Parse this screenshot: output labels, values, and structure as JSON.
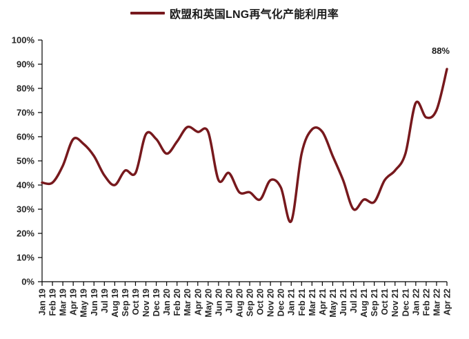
{
  "legend": {
    "label": "欧盟和英国LNG再气化产能利用率"
  },
  "chart_data": {
    "type": "line",
    "title": "欧盟和英国LNG再气化产能利用率",
    "categories": [
      "Jan 19",
      "Feb 19",
      "Mar 19",
      "Apr 19",
      "May 19",
      "Jun 19",
      "Jul 19",
      "Aug 19",
      "Sep 19",
      "Oct 19",
      "Nov 19",
      "Dec 19",
      "Jan 20",
      "Feb 20",
      "Mar 20",
      "Apr 20",
      "May 20",
      "Jun 20",
      "Jul 20",
      "Aug 20",
      "Sep 20",
      "Oct 20",
      "Nov 20",
      "Dec 20",
      "Jan 21",
      "Feb 21",
      "Mar 21",
      "Apr 21",
      "May 21",
      "Jun 21",
      "Jul 21",
      "Aug 21",
      "Sep 21",
      "Oct 21",
      "Nov 21",
      "Dec 21",
      "Jan 22",
      "Feb 22",
      "Mar 22",
      "Apr 22"
    ],
    "values": [
      41,
      41,
      48,
      59,
      57,
      52,
      44,
      40,
      46,
      45,
      61,
      59,
      53,
      58,
      64,
      62,
      62,
      42,
      45,
      37,
      37,
      34,
      42,
      39,
      25,
      53,
      63,
      62,
      52,
      42,
      30,
      34,
      33,
      42,
      46,
      53,
      74,
      68,
      71,
      88
    ],
    "ylim": [
      0,
      100
    ],
    "yticks": [
      "0%",
      "10%",
      "20%",
      "30%",
      "40%",
      "50%",
      "60%",
      "70%",
      "80%",
      "90%",
      "100%"
    ],
    "xlabel": "",
    "ylabel": "",
    "grid": false,
    "legend_position": "top",
    "line_color": "#77191D",
    "axis_color": "#000000",
    "label_color": "#262626",
    "annotation": {
      "text": "88%",
      "index": 39,
      "value": 88
    }
  }
}
